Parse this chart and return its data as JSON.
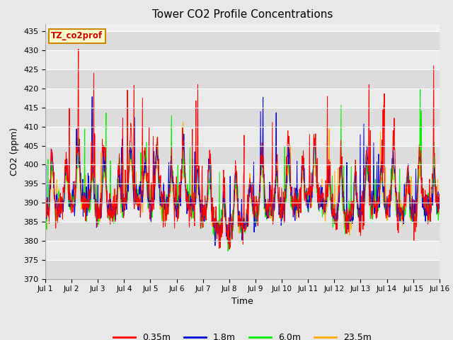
{
  "title": "Tower CO2 Profile Concentrations",
  "xlabel": "Time",
  "ylabel": "CO2 (ppm)",
  "ylim": [
    370,
    437
  ],
  "yticks": [
    370,
    375,
    380,
    385,
    390,
    395,
    400,
    405,
    410,
    415,
    420,
    425,
    430,
    435
  ],
  "colors": {
    "0.35m": "#ff0000",
    "1.8m": "#0000dd",
    "6.0m": "#00ee00",
    "23.5m": "#ffaa00"
  },
  "legend_label": "TZ_co2prof",
  "legend_box_facecolor": "#ffffcc",
  "legend_box_edgecolor": "#cc8800",
  "fig_facecolor": "#e8e8e8",
  "plot_facecolor": "#f0f0f0",
  "n_days": 15,
  "points_per_day": 96,
  "base_co2": 388,
  "diurnal_amp": 12,
  "spike_amp_035": 28,
  "spike_amp_18": 22,
  "spike_amp_60": 20,
  "spike_amp_235": 12
}
